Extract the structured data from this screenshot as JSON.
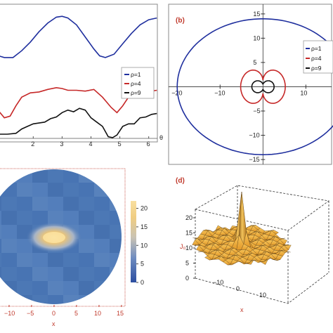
{
  "colors": {
    "series1": "#1f2f9e",
    "series2": "#c62828",
    "series3": "#111111",
    "frame": "#888888",
    "accent": "#c0392b"
  },
  "chart_data": [
    {
      "type": "line",
      "panel": "",
      "xlabel": "θ",
      "xticks": [
        "2",
        "3",
        "4",
        "5",
        "6"
      ],
      "xlim": [
        0.8,
        6.3
      ],
      "ylim": [
        0,
        8
      ],
      "legend": "right",
      "series": [
        {
          "name": "ρ=1",
          "color": "#1f2f9e",
          "x": [
            0.8,
            1.0,
            1.3,
            1.6,
            1.9,
            2.2,
            2.5,
            2.8,
            3.0,
            3.2,
            3.5,
            3.8,
            4.1,
            4.3,
            4.5,
            4.8,
            5.1,
            5.4,
            5.7,
            6.0,
            6.28
          ],
          "y": [
            5.0,
            4.9,
            4.9,
            5.3,
            5.8,
            6.4,
            6.9,
            7.25,
            7.3,
            7.2,
            6.8,
            6.1,
            5.4,
            5.0,
            4.9,
            5.1,
            5.7,
            6.3,
            6.8,
            7.1,
            7.2
          ]
        },
        {
          "name": "ρ=4",
          "color": "#c62828",
          "x": [
            0.8,
            1.0,
            1.2,
            1.4,
            1.6,
            1.9,
            2.2,
            2.5,
            2.8,
            3.0,
            3.2,
            3.5,
            3.8,
            4.1,
            4.4,
            4.7,
            4.9,
            5.1,
            5.3,
            5.6,
            5.9,
            6.28
          ],
          "y": [
            1.8,
            1.4,
            1.5,
            2.1,
            2.6,
            2.85,
            2.9,
            3.05,
            3.15,
            3.1,
            3.0,
            3.0,
            2.95,
            3.05,
            2.6,
            2.0,
            1.7,
            2.1,
            2.6,
            2.8,
            2.9,
            3.0
          ]
        },
        {
          "name": "ρ=9",
          "color": "#111111",
          "x": [
            0.8,
            1.1,
            1.4,
            1.6,
            1.8,
            2.0,
            2.2,
            2.4,
            2.6,
            2.8,
            3.0,
            3.2,
            3.4,
            3.6,
            3.8,
            4.0,
            4.2,
            4.4,
            4.6,
            4.75,
            4.9,
            5.1,
            5.3,
            5.5,
            5.7,
            5.9,
            6.1,
            6.28
          ],
          "y": [
            0.45,
            0.45,
            0.5,
            0.75,
            0.9,
            1.05,
            1.1,
            1.15,
            1.35,
            1.45,
            1.7,
            1.85,
            1.75,
            1.95,
            1.85,
            1.4,
            1.15,
            0.9,
            0.3,
            0.25,
            0.4,
            0.9,
            1.05,
            1.05,
            1.4,
            1.45,
            1.6,
            1.65
          ]
        }
      ]
    },
    {
      "type": "line",
      "panel": "(b)",
      "xticks": [
        "−20",
        "−10",
        "10"
      ],
      "yticks": [
        "15",
        "10",
        "5",
        "−5",
        "−10",
        "−15"
      ],
      "xlim": [
        -22,
        16
      ],
      "ylim": [
        -16,
        17
      ],
      "legend": "right",
      "series": [
        {
          "name": "ρ=1",
          "color": "#1f2f9e",
          "shape": "ellipse",
          "a": 20,
          "b": 14
        },
        {
          "name": "ρ=4",
          "color": "#c62828",
          "shape": "dumbbell",
          "a": 5.2,
          "b": 4.4
        },
        {
          "name": "ρ=9",
          "color": "#111111",
          "shape": "butterfly",
          "a": 2.6,
          "b": 2.0
        }
      ]
    },
    {
      "type": "heatmap",
      "panel": "",
      "xlabel": "x",
      "xticks": [
        "−10",
        "−5",
        "0",
        "5",
        "10",
        "15"
      ],
      "colorbar_ticks": [
        "20",
        "15",
        "10",
        "5",
        "0"
      ],
      "colorbar_range": [
        0,
        22
      ],
      "domain": "disc",
      "peak": {
        "x": 0,
        "y": 0,
        "value": 21
      }
    },
    {
      "type": "surface",
      "panel": "(d)",
      "xlabel": "x",
      "zlabel": "J₀",
      "xticks": [
        "−10",
        "0",
        "10"
      ],
      "zticks": [
        "20",
        "15",
        "10",
        "5",
        "0"
      ],
      "zlim": [
        0,
        22
      ],
      "peak": {
        "x": 0,
        "y": 0,
        "value": 21
      }
    }
  ]
}
